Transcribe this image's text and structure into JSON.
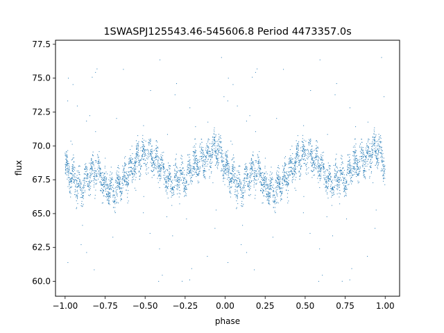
{
  "chart_data": {
    "type": "scatter",
    "title": "1SWASPJ125543.46-545606.8 Period 4473357.0s",
    "xlabel": "phase",
    "ylabel": "flux",
    "xlim": [
      -1.06,
      1.09
    ],
    "ylim": [
      58.9,
      77.8
    ],
    "xticks": [
      -1.0,
      -0.75,
      -0.5,
      -0.25,
      0.0,
      0.25,
      0.5,
      0.75,
      1.0
    ],
    "xtick_labels": [
      "−1.00",
      "−0.75",
      "−0.50",
      "−0.25",
      "0.00",
      "0.25",
      "0.50",
      "0.75",
      "1.00"
    ],
    "yticks": [
      60.0,
      62.5,
      65.0,
      67.5,
      70.0,
      72.5,
      75.0,
      77.5
    ],
    "ytick_labels": [
      "60.0",
      "62.5",
      "65.0",
      "67.5",
      "70.0",
      "72.5",
      "75.0",
      "77.5"
    ],
    "grid": false,
    "legend": "none",
    "point_color": "#1f77b4",
    "series": [
      {
        "phase_profile": {
          "x": [
            0.0,
            0.05,
            0.1,
            0.15,
            0.2,
            0.25,
            0.3,
            0.35,
            0.4,
            0.45,
            0.5,
            0.55,
            0.6,
            0.65,
            0.7,
            0.75,
            0.8,
            0.85,
            0.9,
            0.95,
            1.0
          ],
          "flux": [
            68.5,
            67.6,
            66.8,
            67.8,
            68.2,
            67.0,
            66.6,
            67.2,
            68.0,
            69.0,
            69.4,
            69.2,
            68.5,
            67.0,
            67.8,
            67.6,
            68.6,
            68.8,
            69.4,
            70.0,
            68.5
          ]
        },
        "spread": 1.4,
        "outlier_range": [
          59.8,
          76.8
        ],
        "n_points_per_cycle": 2200
      }
    ]
  }
}
